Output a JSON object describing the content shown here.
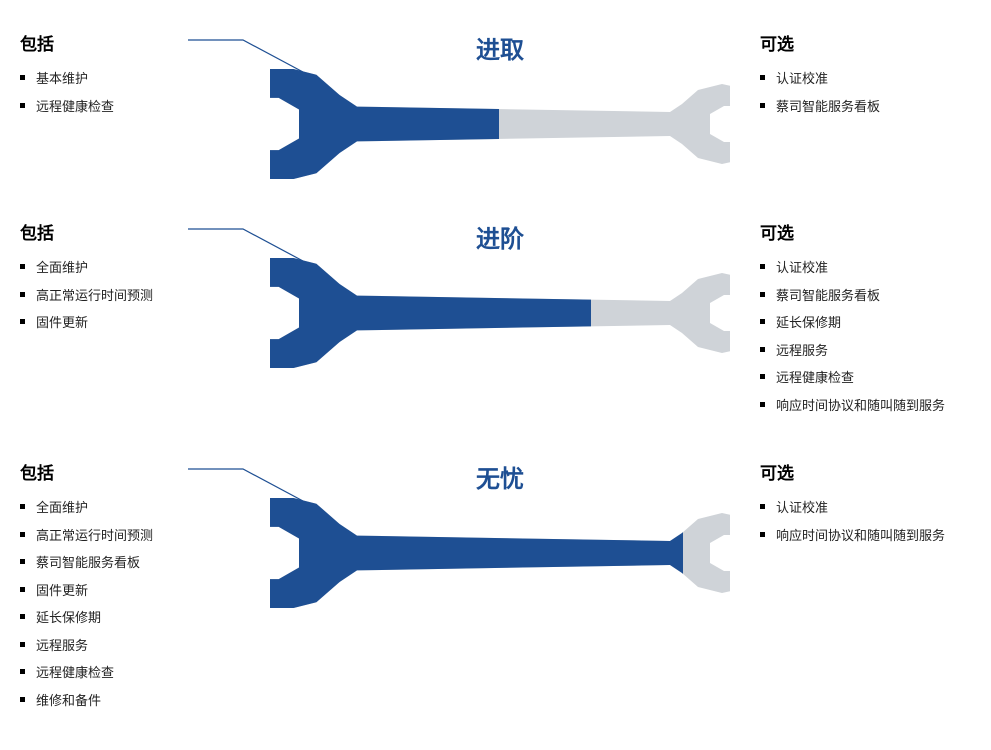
{
  "colors": {
    "brand_blue": "#1e4f93",
    "grey": "#cfd3d8",
    "title_color": "#1e4f93",
    "text": "#000000",
    "bg": "#ffffff",
    "leader": "#1e4f93"
  },
  "headings": {
    "included": "包括",
    "optional": "可选"
  },
  "tiers": [
    {
      "name": "进取",
      "fill_ratio": 0.4,
      "included": [
        "基本维护",
        "远程健康检查"
      ],
      "optional": [
        "认证校准",
        "蔡司智能服务看板"
      ]
    },
    {
      "name": "进阶",
      "fill_ratio": 0.6,
      "included": [
        "全面维护",
        "高正常运行时间预测",
        "固件更新"
      ],
      "optional": [
        "认证校准",
        "蔡司智能服务看板",
        "延长保修期",
        "远程服务",
        "远程健康检查",
        "响应时间协议和随叫随到服务"
      ]
    },
    {
      "name": "无忧",
      "fill_ratio": 0.8,
      "included": [
        "全面维护",
        "高正常运行时间预测",
        "蔡司智能服务看板",
        "固件更新",
        "延长保修期",
        "远程服务",
        "远程健康检查",
        "维修和备件"
      ],
      "optional": [
        "认证校准",
        "响应时间协议和随叫随到服务"
      ]
    }
  ],
  "wrench": {
    "viewbox_w": 460,
    "viewbox_h": 110,
    "left_head_scale": 1.45,
    "right_head_scale": 1.0
  }
}
